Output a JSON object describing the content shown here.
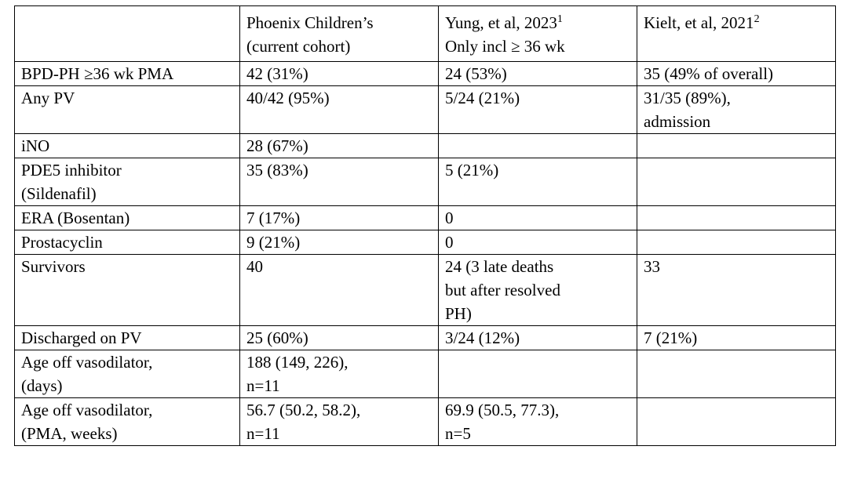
{
  "table": {
    "headers": [
      {
        "lines": [
          ""
        ]
      },
      {
        "lines": [
          "Phoenix Children’s",
          "(current cohort)"
        ]
      },
      {
        "lines": [
          "Yung, et al, 2023",
          "Only incl ≥ 36 wk"
        ],
        "sup": "1"
      },
      {
        "lines": [
          "Kielt, et al, 2021"
        ],
        "sup": "2"
      }
    ],
    "rows": [
      {
        "cells": [
          [
            "BPD-PH ≥36 wk PMA"
          ],
          [
            "42 (31%)"
          ],
          [
            "24 (53%)"
          ],
          [
            "35 (49% of overall)"
          ]
        ]
      },
      {
        "cells": [
          [
            "Any PV"
          ],
          [
            "40/42 (95%)"
          ],
          [
            "5/24 (21%)"
          ],
          [
            "31/35 (89%),",
            "admission"
          ]
        ]
      },
      {
        "cells": [
          [
            "iNO"
          ],
          [
            "28 (67%)"
          ],
          [
            ""
          ],
          [
            ""
          ]
        ]
      },
      {
        "cells": [
          [
            "PDE5 inhibitor",
            "(Sildenafil)"
          ],
          [
            "35 (83%)"
          ],
          [
            "5 (21%)"
          ],
          [
            ""
          ]
        ]
      },
      {
        "cells": [
          [
            "ERA (Bosentan)"
          ],
          [
            "7 (17%)"
          ],
          [
            "0"
          ],
          [
            ""
          ]
        ]
      },
      {
        "cells": [
          [
            "Prostacyclin"
          ],
          [
            "9 (21%)"
          ],
          [
            "0"
          ],
          [
            ""
          ]
        ]
      },
      {
        "cells": [
          [
            "Survivors"
          ],
          [
            "40"
          ],
          [
            "24 (3 late deaths",
            "but after resolved",
            "PH)"
          ],
          [
            "33"
          ]
        ]
      },
      {
        "cells": [
          [
            "Discharged on PV"
          ],
          [
            "25 (60%)"
          ],
          [
            "3/24 (12%)"
          ],
          [
            "7 (21%)"
          ]
        ]
      },
      {
        "cells": [
          [
            "Age off vasodilator,",
            "(days)"
          ],
          [
            "188 (149, 226),",
            "n=11"
          ],
          [
            ""
          ],
          [
            ""
          ]
        ]
      },
      {
        "cells": [
          [
            "Age off vasodilator,",
            "(PMA, weeks)"
          ],
          [
            "56.7 (50.2, 58.2),",
            "n=11"
          ],
          [
            "69.9 (50.5, 77.3),",
            "n=5"
          ],
          [
            ""
          ]
        ]
      }
    ]
  }
}
